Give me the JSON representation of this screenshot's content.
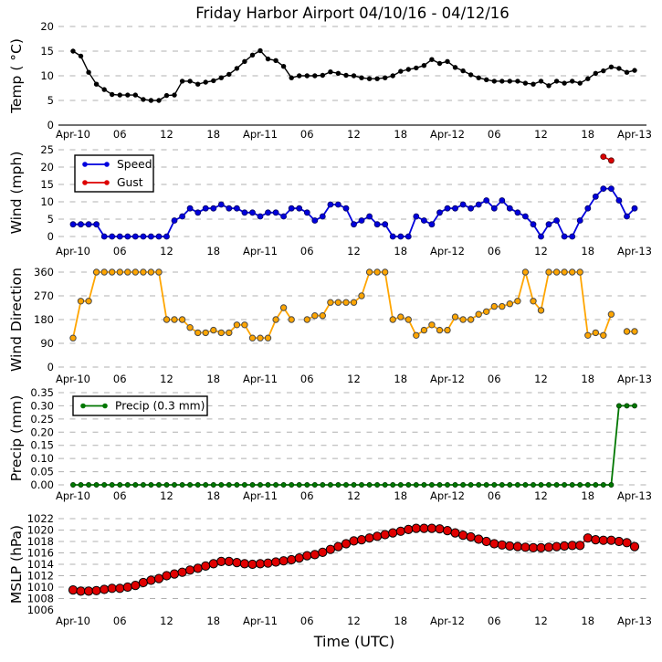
{
  "title": "Friday Harbor Airport 04/10/16 - 04/12/16",
  "xlabel": "Time (UTC)",
  "x_ticks": {
    "hours": [
      0,
      6,
      12,
      18,
      24,
      30,
      36,
      42,
      48,
      54,
      60,
      66,
      72
    ],
    "labels": [
      "Apr-10",
      "06",
      "12",
      "18",
      "Apr-11",
      "06",
      "12",
      "18",
      "Apr-12",
      "06",
      "12",
      "18",
      "Apr-13"
    ]
  },
  "grid": {
    "on": true,
    "style": "dashed",
    "color": "#b0b0b0"
  },
  "chart_data": [
    {
      "type": "line",
      "ylabel": "Temp ( °C)",
      "ylim": [
        0,
        20
      ],
      "yticks": [
        0,
        5,
        10,
        15,
        20
      ],
      "zero_reference_line": true,
      "series": [
        {
          "name": "Temp",
          "color": "#000000",
          "values": [
            15.0,
            14.0,
            10.7,
            8.3,
            7.2,
            6.2,
            6.1,
            6.1,
            6.1,
            5.2,
            5.0,
            5.0,
            6.0,
            6.1,
            8.9,
            8.9,
            8.3,
            8.7,
            9.0,
            9.6,
            10.3,
            11.5,
            12.9,
            14.2,
            15.1,
            13.4,
            13.1,
            11.9,
            9.6,
            10.0,
            10.0,
            10.0,
            10.1,
            10.8,
            10.5,
            10.1,
            10.0,
            9.6,
            9.4,
            9.4,
            9.6,
            10.0,
            10.9,
            11.3,
            11.6,
            12.1,
            13.3,
            12.5,
            12.9,
            11.7,
            11.0,
            10.2,
            9.6,
            9.2,
            8.9,
            8.9,
            8.9,
            8.9,
            8.5,
            8.3,
            8.9,
            8.0,
            8.9,
            8.5,
            8.9,
            8.5,
            9.4,
            10.5,
            11.0,
            11.8,
            11.5,
            10.7,
            11.1
          ]
        }
      ]
    },
    {
      "type": "line",
      "ylabel": "Wind (mph)",
      "ylim": [
        0,
        25
      ],
      "yticks": [
        0,
        5,
        10,
        15,
        20,
        25
      ],
      "legend": {
        "position": "upper left",
        "entries": [
          "Speed",
          "Gust"
        ]
      },
      "series": [
        {
          "name": "Speed",
          "color": "#0000dd",
          "values": [
            3.5,
            3.5,
            3.5,
            3.5,
            0,
            0,
            0,
            0,
            0,
            0,
            0,
            0,
            0,
            4.6,
            5.8,
            8.1,
            6.9,
            8.1,
            8.1,
            9.2,
            8.1,
            8.1,
            6.9,
            6.9,
            5.8,
            6.9,
            6.9,
            5.8,
            8.1,
            8.1,
            6.9,
            4.6,
            5.8,
            9.2,
            9.2,
            8.1,
            3.5,
            4.6,
            5.8,
            3.5,
            3.5,
            0,
            0,
            0,
            5.8,
            4.6,
            3.5,
            6.9,
            8.1,
            8.1,
            9.2,
            8.1,
            9.2,
            10.4,
            8.1,
            10.4,
            8.1,
            6.9,
            5.8,
            3.5,
            0,
            3.5,
            4.6,
            0,
            0,
            4.6,
            8.1,
            11.5,
            13.8,
            13.8,
            10.4,
            5.8,
            8.1
          ]
        },
        {
          "name": "Gust",
          "color": "#dd0000",
          "values": [
            null,
            null,
            null,
            null,
            null,
            null,
            null,
            null,
            null,
            null,
            null,
            null,
            null,
            null,
            null,
            null,
            null,
            null,
            null,
            null,
            null,
            null,
            null,
            null,
            null,
            null,
            null,
            null,
            null,
            null,
            null,
            null,
            null,
            null,
            null,
            null,
            null,
            null,
            null,
            null,
            null,
            null,
            null,
            null,
            null,
            null,
            null,
            null,
            null,
            null,
            null,
            null,
            null,
            null,
            null,
            null,
            null,
            null,
            null,
            null,
            null,
            null,
            null,
            null,
            null,
            null,
            null,
            null,
            23.0,
            21.9,
            null,
            null,
            null
          ]
        }
      ]
    },
    {
      "type": "line",
      "ylabel": "Wind Direction",
      "ylim": [
        0,
        360
      ],
      "yticks": [
        0,
        90,
        180,
        270,
        360
      ],
      "series": [
        {
          "name": "Direction",
          "color": "#ffa500",
          "values": [
            110,
            250,
            250,
            360,
            360,
            360,
            360,
            360,
            360,
            360,
            360,
            360,
            180,
            180,
            180,
            150,
            130,
            130,
            140,
            130,
            130,
            160,
            160,
            110,
            110,
            110,
            180,
            225,
            180,
            null,
            180,
            195,
            195,
            245,
            245,
            245,
            245,
            270,
            360,
            360,
            360,
            180,
            190,
            180,
            120,
            140,
            160,
            140,
            140,
            190,
            180,
            180,
            200,
            210,
            230,
            230,
            240,
            250,
            360,
            250,
            215,
            360,
            360,
            360,
            360,
            360,
            120,
            130,
            120,
            200,
            null,
            135,
            135
          ]
        }
      ]
    },
    {
      "type": "line",
      "ylabel": "Precip (mm)",
      "ylim": [
        0,
        0.35
      ],
      "yticks": [
        0,
        0.05,
        0.1,
        0.15,
        0.2,
        0.25,
        0.3,
        0.35
      ],
      "ytick_labels": [
        "0.00",
        "0.05",
        "0.10",
        "0.15",
        "0.20",
        "0.25",
        "0.30",
        "0.35"
      ],
      "legend": {
        "position": "upper left",
        "entries": [
          "Precip (0.3 mm)"
        ]
      },
      "series": [
        {
          "name": "Precip (0.3 mm)",
          "color": "#007700",
          "values": [
            0,
            0,
            0,
            0,
            0,
            0,
            0,
            0,
            0,
            0,
            0,
            0,
            0,
            0,
            0,
            0,
            0,
            0,
            0,
            0,
            0,
            0,
            0,
            0,
            0,
            0,
            0,
            0,
            0,
            0,
            0,
            0,
            0,
            0,
            0,
            0,
            0,
            0,
            0,
            0,
            0,
            0,
            0,
            0,
            0,
            0,
            0,
            0,
            0,
            0,
            0,
            0,
            0,
            0,
            0,
            0,
            0,
            0,
            0,
            0,
            0,
            0,
            0,
            0,
            0,
            0,
            0,
            0,
            0,
            0,
            0.3,
            0.3,
            0.3
          ]
        }
      ]
    },
    {
      "type": "line",
      "ylabel": "MSLP (hPa)",
      "ylim": [
        1006,
        1022
      ],
      "yticks": [
        1006,
        1008,
        1010,
        1012,
        1014,
        1016,
        1018,
        1020,
        1022
      ],
      "grid_skip": [
        1006
      ],
      "series": [
        {
          "name": "MSLP",
          "color": "#e00000",
          "values": [
            1009.5,
            1009.3,
            1009.3,
            1009.4,
            1009.6,
            1009.8,
            1009.8,
            1010.0,
            1010.3,
            1010.8,
            1011.2,
            1011.5,
            1012.0,
            1012.3,
            1012.6,
            1013.0,
            1013.3,
            1013.7,
            1014.1,
            1014.5,
            1014.5,
            1014.3,
            1014.1,
            1014.0,
            1014.1,
            1014.2,
            1014.4,
            1014.6,
            1014.8,
            1015.1,
            1015.5,
            1015.7,
            1016.1,
            1016.6,
            1017.1,
            1017.6,
            1018.1,
            1018.3,
            1018.6,
            1018.9,
            1019.2,
            1019.5,
            1019.8,
            1020.1,
            1020.3,
            1020.3,
            1020.3,
            1020.2,
            1019.9,
            1019.5,
            1019.1,
            1018.8,
            1018.4,
            1018.0,
            1017.6,
            1017.4,
            1017.2,
            1017.1,
            1017.0,
            1016.9,
            1016.9,
            1017.0,
            1017.1,
            1017.2,
            1017.3,
            1017.3,
            1018.6,
            1018.3,
            1018.2,
            1018.2,
            1018.0,
            1017.8,
            1017.1
          ]
        }
      ]
    }
  ]
}
